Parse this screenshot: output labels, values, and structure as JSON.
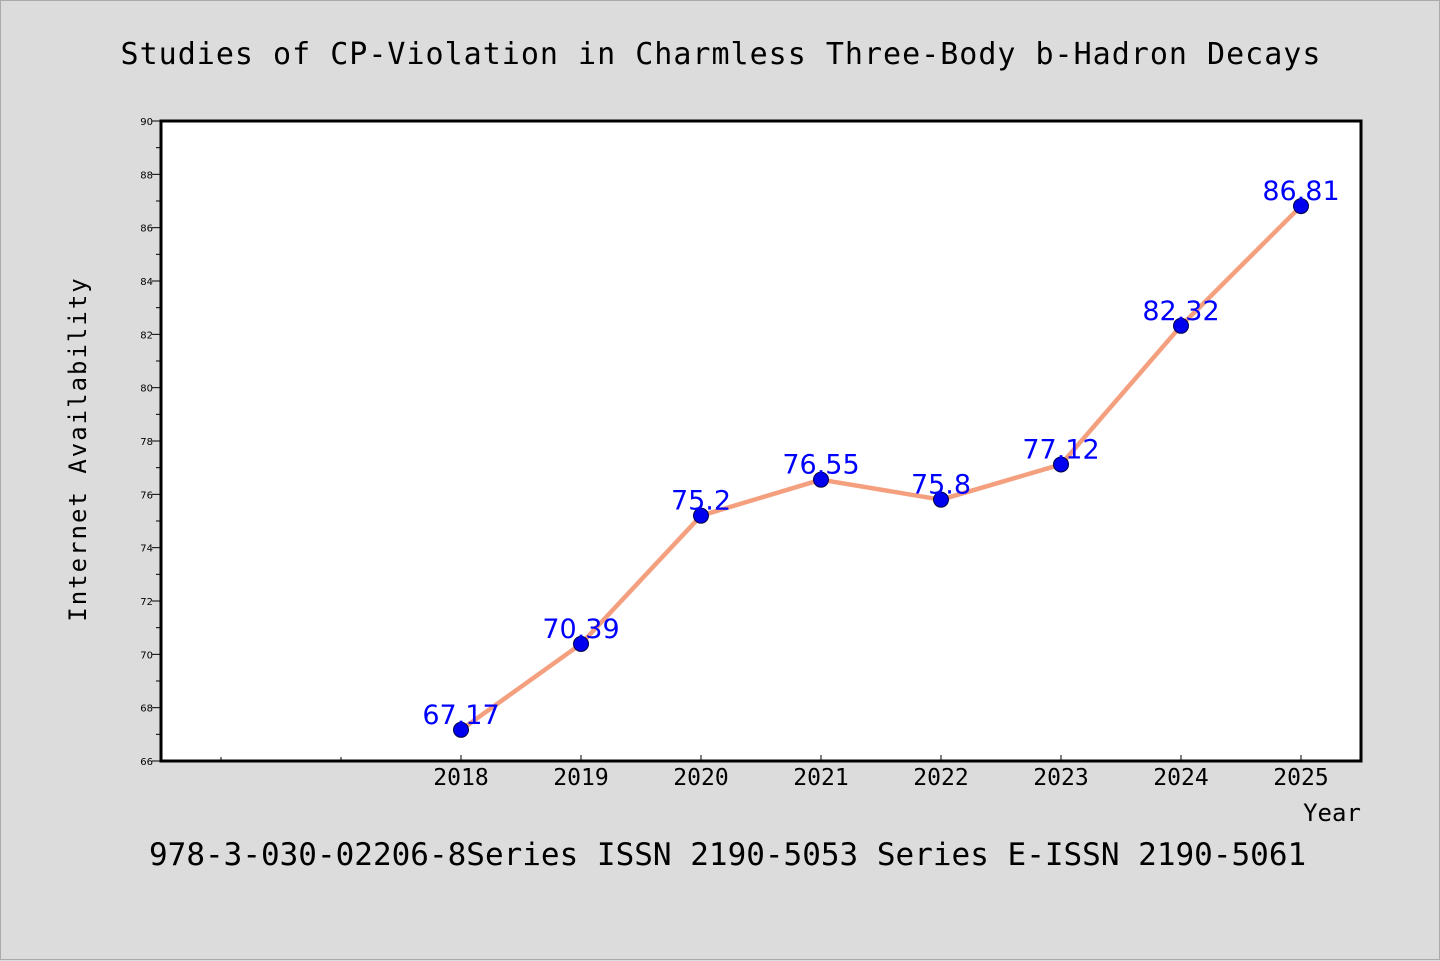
{
  "chart_data": {
    "type": "line",
    "title": "Studies of CP-Violation in Charmless Three-Body b-Hadron Decays",
    "xlabel": "Year",
    "ylabel": "Internet Availability",
    "footer": "978-3-030-02206-8Series ISSN 2190-5053 Series E-ISSN 2190-5061",
    "categories": [
      "2018",
      "2019",
      "2020",
      "2021",
      "2022",
      "2023",
      "2024",
      "2025"
    ],
    "values": [
      67.17,
      70.39,
      75.2,
      76.55,
      75.8,
      77.12,
      82.32,
      86.81
    ],
    "data_labels": [
      "67.17",
      "70.39",
      "75.2",
      "76.55",
      "75.8",
      "77.12",
      "82.32",
      "86.81"
    ],
    "ylim": [
      66,
      90
    ],
    "yticks": [
      "66",
      "68",
      "70",
      "72",
      "74",
      "76",
      "78",
      "80",
      "82",
      "84",
      "86",
      "88",
      "90"
    ],
    "grid": false,
    "legend": "none",
    "colors": {
      "line": "#f4a07f",
      "marker": "#0000ee",
      "label": "#0000ff",
      "axis": "#000000",
      "plot_background": "#ffffff",
      "page_background": "#dcdcdc"
    }
  }
}
